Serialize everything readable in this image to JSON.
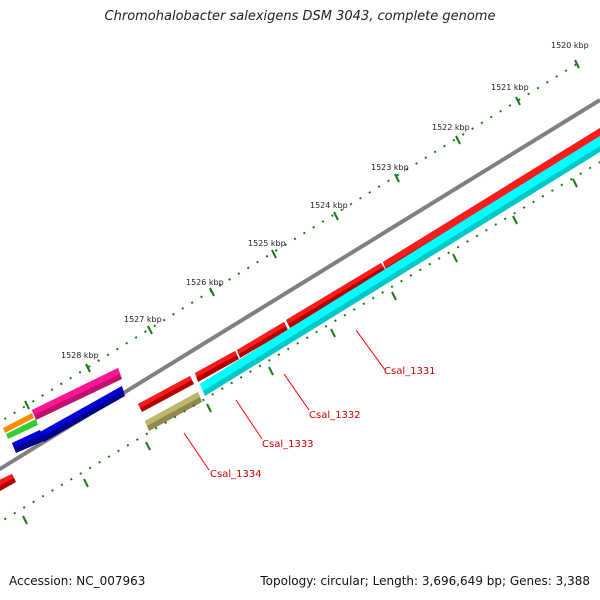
{
  "title": "Chromohalobacter salexigens DSM 3043, complete genome",
  "footer": {
    "accession": "Accession: NC_007963",
    "summary": "Topology: circular; Length: 3,696,649 bp; Genes: 3,388"
  },
  "ruler_labels": [
    "1520 kbp",
    "1521 kbp",
    "1522 kbp",
    "1523 kbp",
    "1524 kbp",
    "1525 kbp",
    "1526 kbp",
    "1527 kbp",
    "1528 kbp"
  ],
  "gene_labels": [
    "Csal_1331",
    "Csal_1332",
    "Csal_1333",
    "Csal_1334"
  ],
  "colors": {
    "backbone": "#808080",
    "ruler": "#1a7a1a",
    "cds_forward": "#ff0000",
    "cds_reverse": "#ff0000",
    "cog_cyan": "#00ffff",
    "cog_olive": "#bdb76b",
    "cog_pink": "#ff1493",
    "cog_blue": "#0000cd",
    "cog_orange": "#ff8c00",
    "cog_green": "#32cd32",
    "label_line": "#ff0000",
    "label_text": "#cc0000"
  }
}
